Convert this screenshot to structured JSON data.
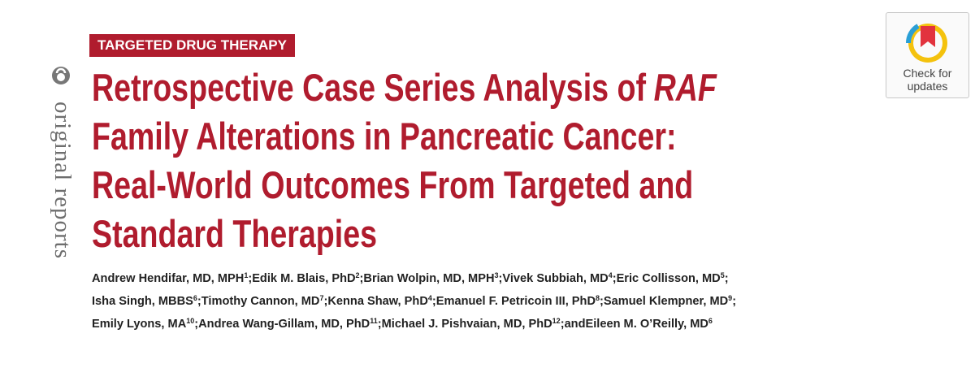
{
  "section_label": "TARGETED DRUG THERAPY",
  "side_label": "original reports",
  "badge": {
    "line1": "Check for",
    "line2": "updates"
  },
  "title": {
    "lines": [
      [
        "Retrospective Case Series Analysis of",
        "RAF"
      ],
      [
        "Family Alterations in Pancreatic Cancer:"
      ],
      [
        "Real-World Outcomes From Targeted and"
      ],
      [
        "Standard Therapies"
      ]
    ]
  },
  "authors": {
    "separator": ";",
    "conjunction": "and",
    "lines": [
      [
        {
          "name": "Andrew Hendifar, MD, MPH",
          "sup": "1"
        },
        {
          "name": "Edik M. Blais, PhD",
          "sup": "2"
        },
        {
          "name": "Brian Wolpin, MD, MPH",
          "sup": "3"
        },
        {
          "name": "Vivek Subbiah, MD",
          "sup": "4"
        },
        {
          "name": "Eric Collisson, MD",
          "sup": "5"
        }
      ],
      [
        {
          "name": "Isha Singh, MBBS",
          "sup": "6"
        },
        {
          "name": "Timothy Cannon, MD",
          "sup": "7"
        },
        {
          "name": "Kenna Shaw, PhD",
          "sup": "4"
        },
        {
          "name": "Emanuel F. Petricoin III, PhD",
          "sup": "8"
        },
        {
          "name": "Samuel Klempner, MD",
          "sup": "9"
        }
      ],
      [
        {
          "name": "Emily Lyons, MA",
          "sup": "10"
        },
        {
          "name": "Andrea Wang-Gillam, MD, PhD",
          "sup": "11"
        },
        {
          "name": "Michael J. Pishvaian, MD, PhD",
          "sup": "12"
        },
        {
          "name": "Eileen M. O’Reilly, MD",
          "sup": "6"
        }
      ]
    ]
  }
}
